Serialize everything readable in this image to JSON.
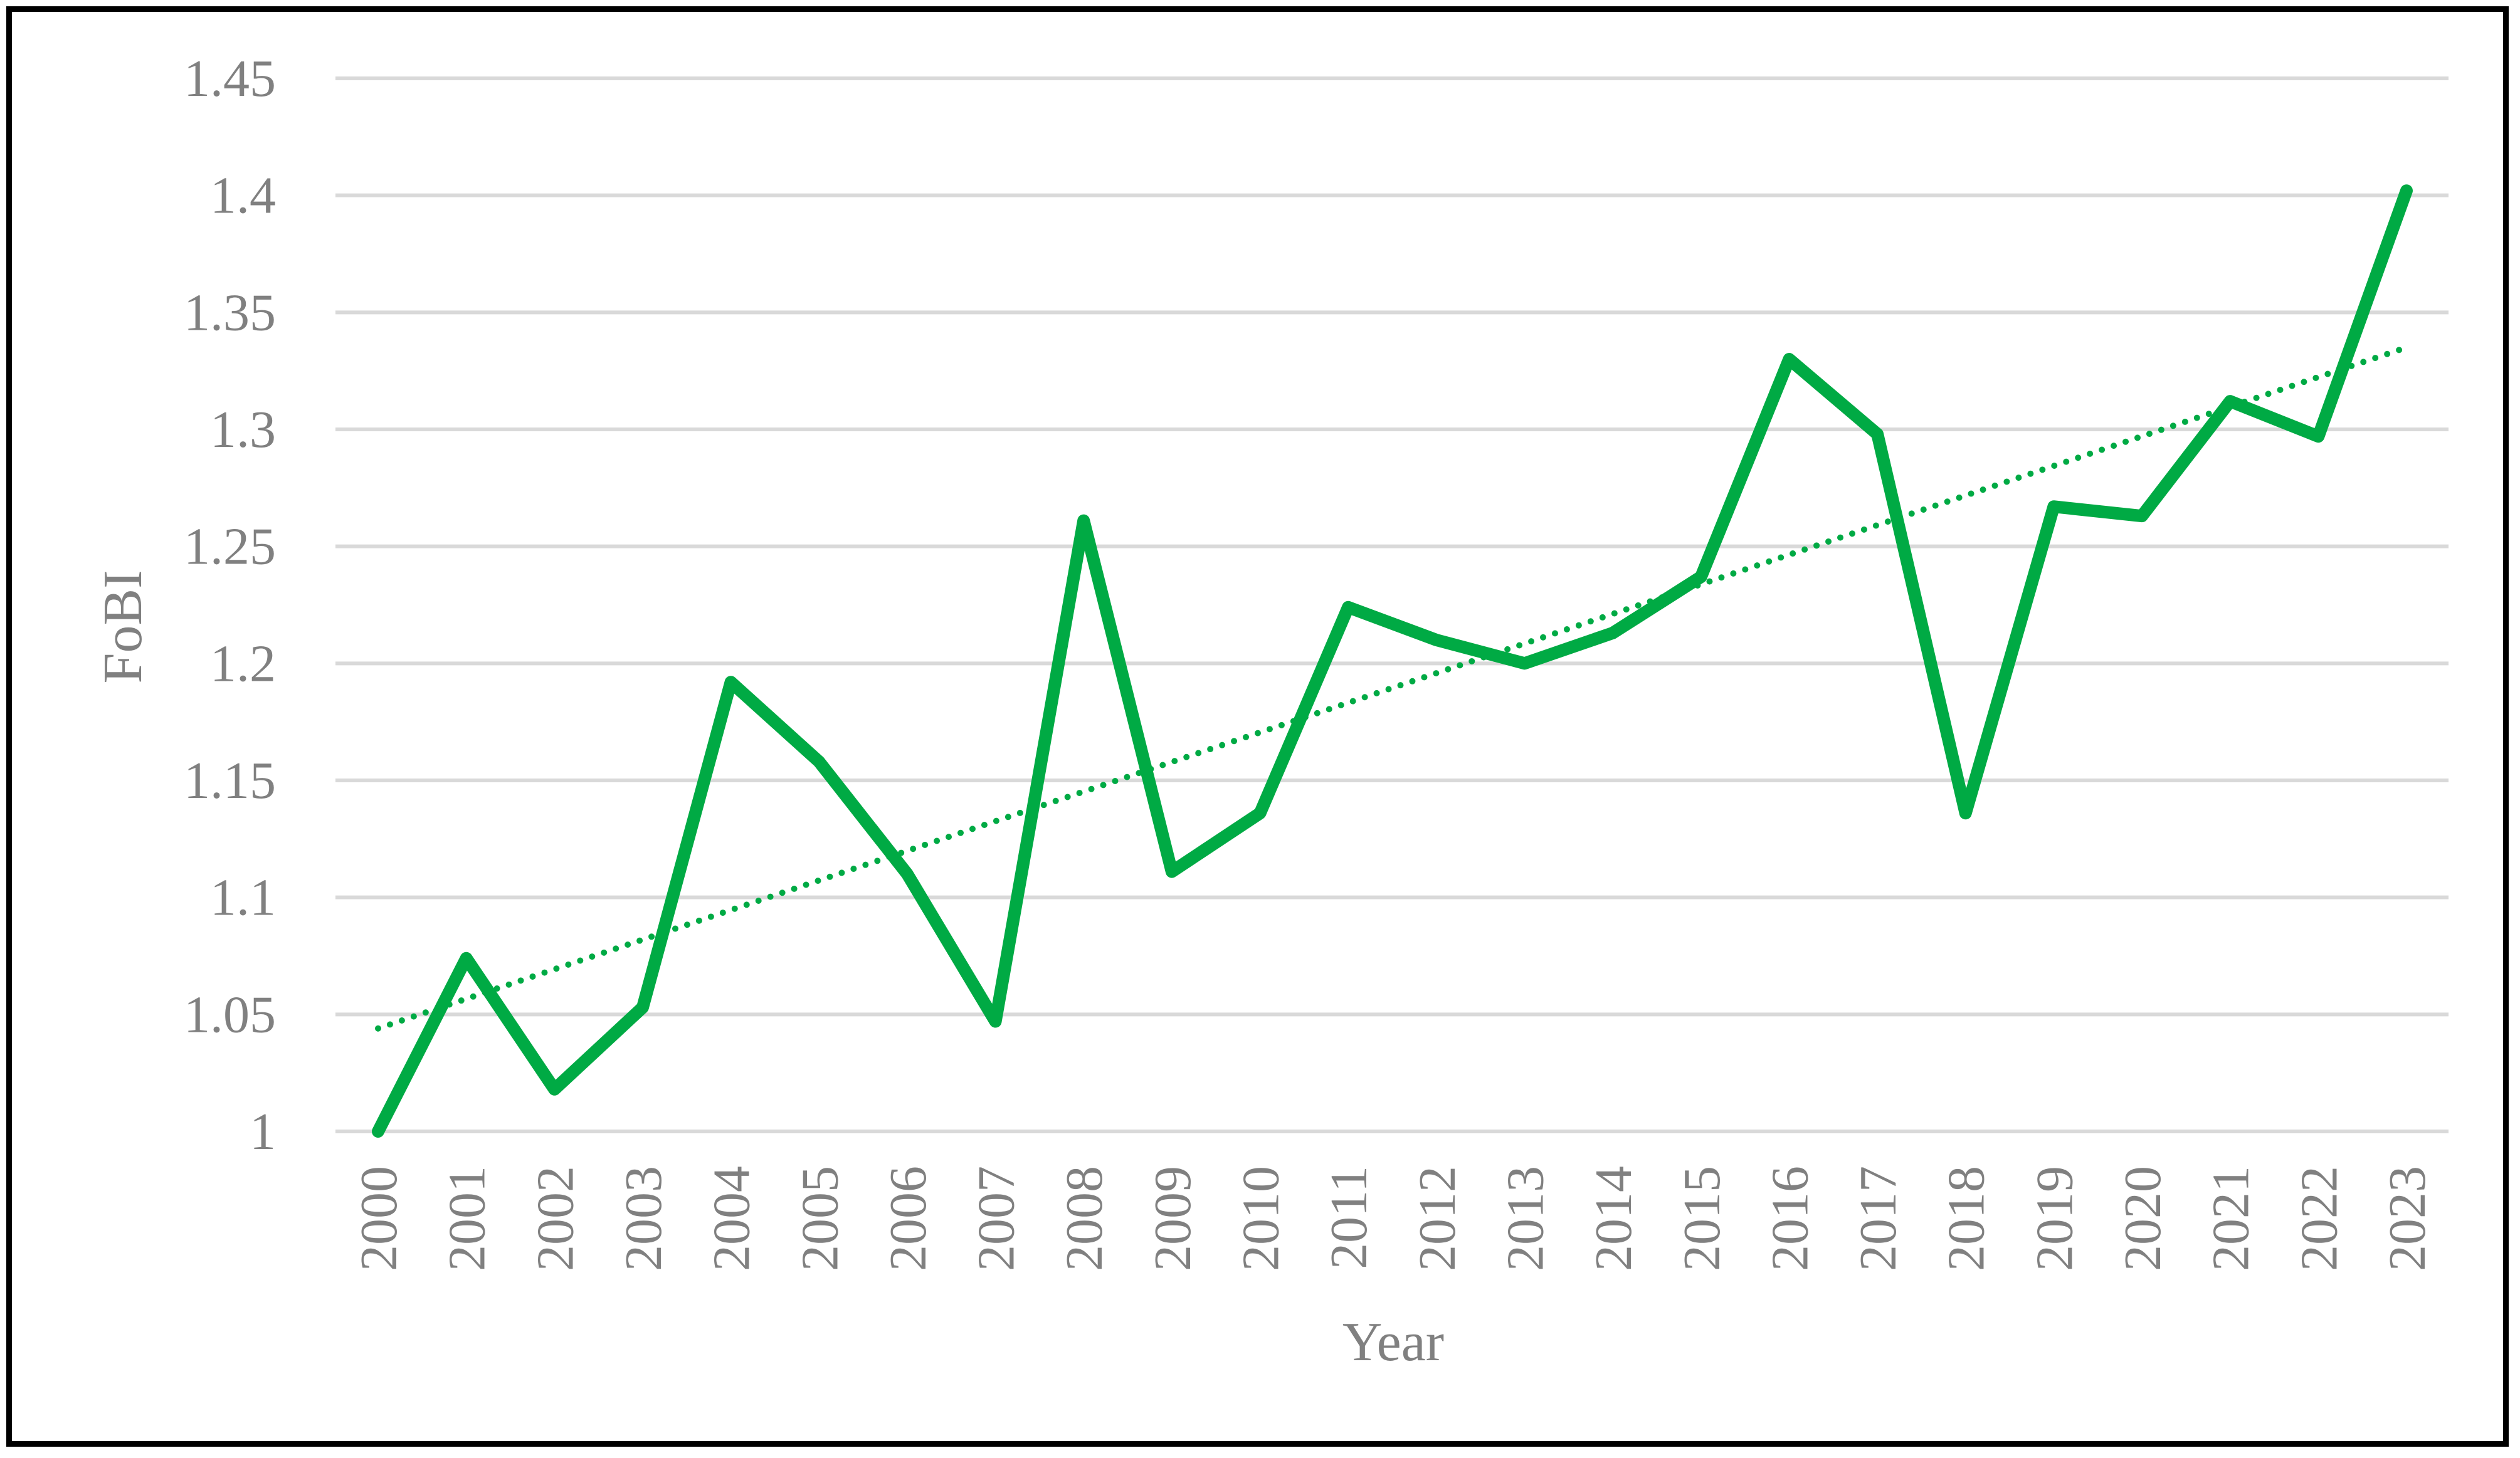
{
  "chart_data": {
    "type": "line",
    "title": "",
    "xlabel": "Year",
    "ylabel": "FoBI",
    "x": [
      "2000",
      "2001",
      "2002",
      "2003",
      "2004",
      "2005",
      "2006",
      "2007",
      "2008",
      "2009",
      "2010",
      "2011",
      "2012",
      "2013",
      "2014",
      "2015",
      "2016",
      "2017",
      "2018",
      "2019",
      "2020",
      "2021",
      "2022",
      "2023"
    ],
    "series": [
      {
        "values": [
          1.0,
          1.074,
          1.018,
          1.053,
          1.192,
          1.158,
          1.11,
          1.047,
          1.261,
          1.111,
          1.136,
          1.224,
          1.21,
          1.2,
          1.213,
          1.237,
          1.33,
          1.298,
          1.136,
          1.267,
          1.263,
          1.312,
          1.297,
          1.402
        ],
        "color": "#00aa44",
        "style": "solid"
      }
    ],
    "trendline": {
      "kind": "linear",
      "start": 1.044,
      "end": 1.335,
      "color": "#00aa44",
      "style": "dotted"
    },
    "ylim": [
      1.0,
      1.45
    ],
    "yticks": [
      "1",
      "1.05",
      "1.1",
      "1.15",
      "1.2",
      "1.25",
      "1.3",
      "1.35",
      "1.4",
      "1.45"
    ],
    "ytick_values": [
      1.0,
      1.05,
      1.1,
      1.15,
      1.2,
      1.25,
      1.3,
      1.35,
      1.4,
      1.45
    ],
    "grid": true,
    "legend": "none"
  }
}
